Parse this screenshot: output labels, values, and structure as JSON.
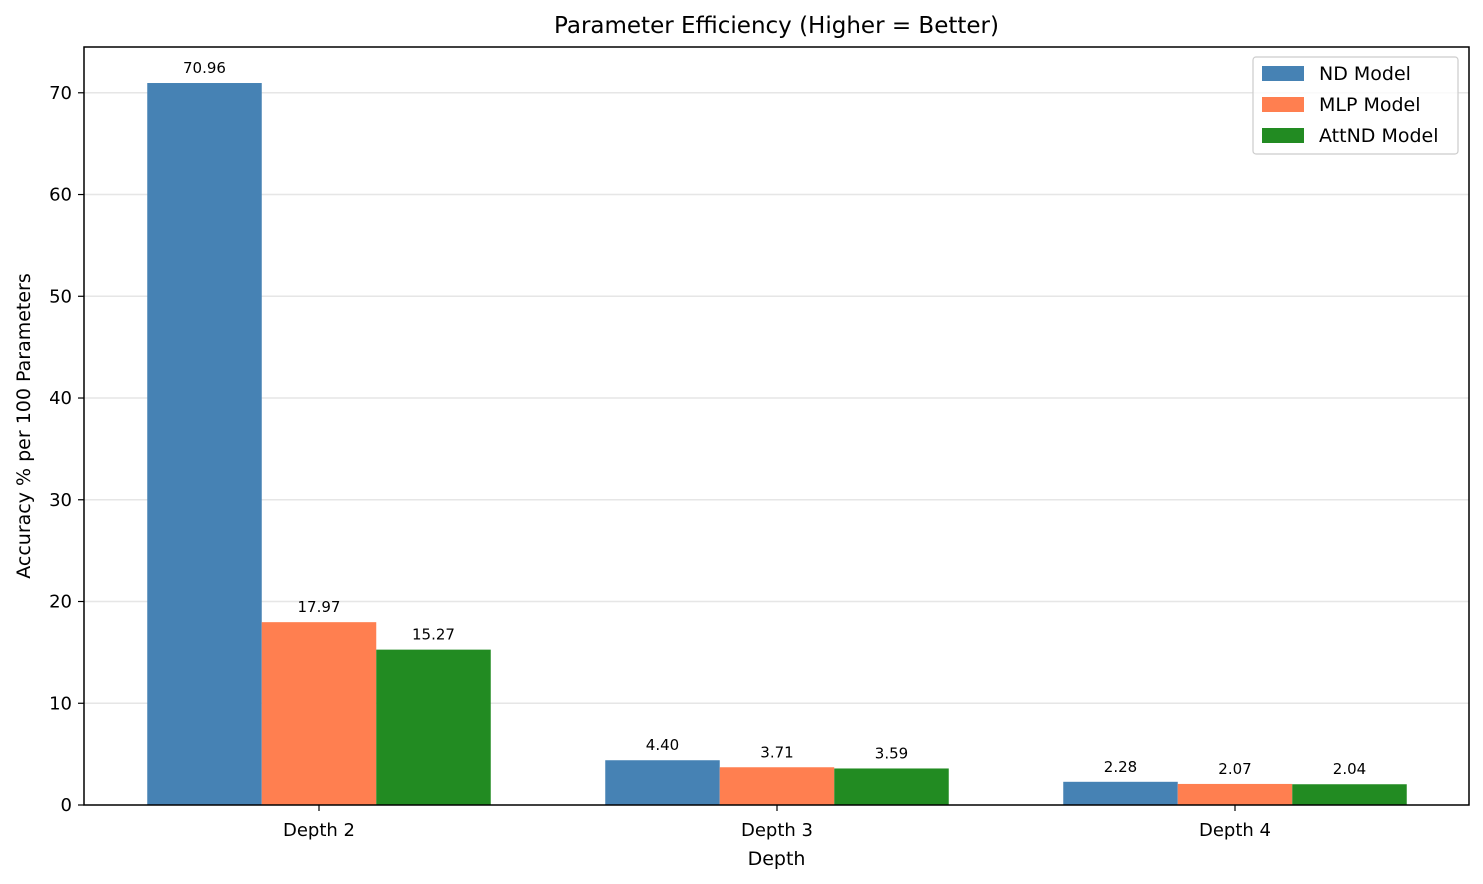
{
  "chart_data": {
    "type": "bar",
    "title": "Parameter Efficiency (Higher = Better)",
    "xlabel": "Depth",
    "ylabel": "Accuracy % per 100 Parameters",
    "categories": [
      "Depth 2",
      "Depth 3",
      "Depth 4"
    ],
    "series": [
      {
        "name": "ND Model",
        "color": "#4682b4",
        "values": [
          70.96,
          4.4,
          2.28
        ],
        "labels": [
          "70.96",
          "4.40",
          "2.28"
        ]
      },
      {
        "name": "MLP Model",
        "color": "#ff7f50",
        "values": [
          17.97,
          3.71,
          2.07
        ],
        "labels": [
          "17.97",
          "3.71",
          "2.07"
        ]
      },
      {
        "name": "AttND Model",
        "color": "#228b22",
        "values": [
          15.27,
          3.59,
          2.04
        ],
        "labels": [
          "15.27",
          "3.59",
          "2.04"
        ]
      }
    ],
    "ylim": [
      0,
      74.5
    ],
    "yticks": [
      0,
      10,
      20,
      30,
      40,
      50,
      60,
      70
    ],
    "grid": "horizontal",
    "legend_position": "top-right"
  }
}
